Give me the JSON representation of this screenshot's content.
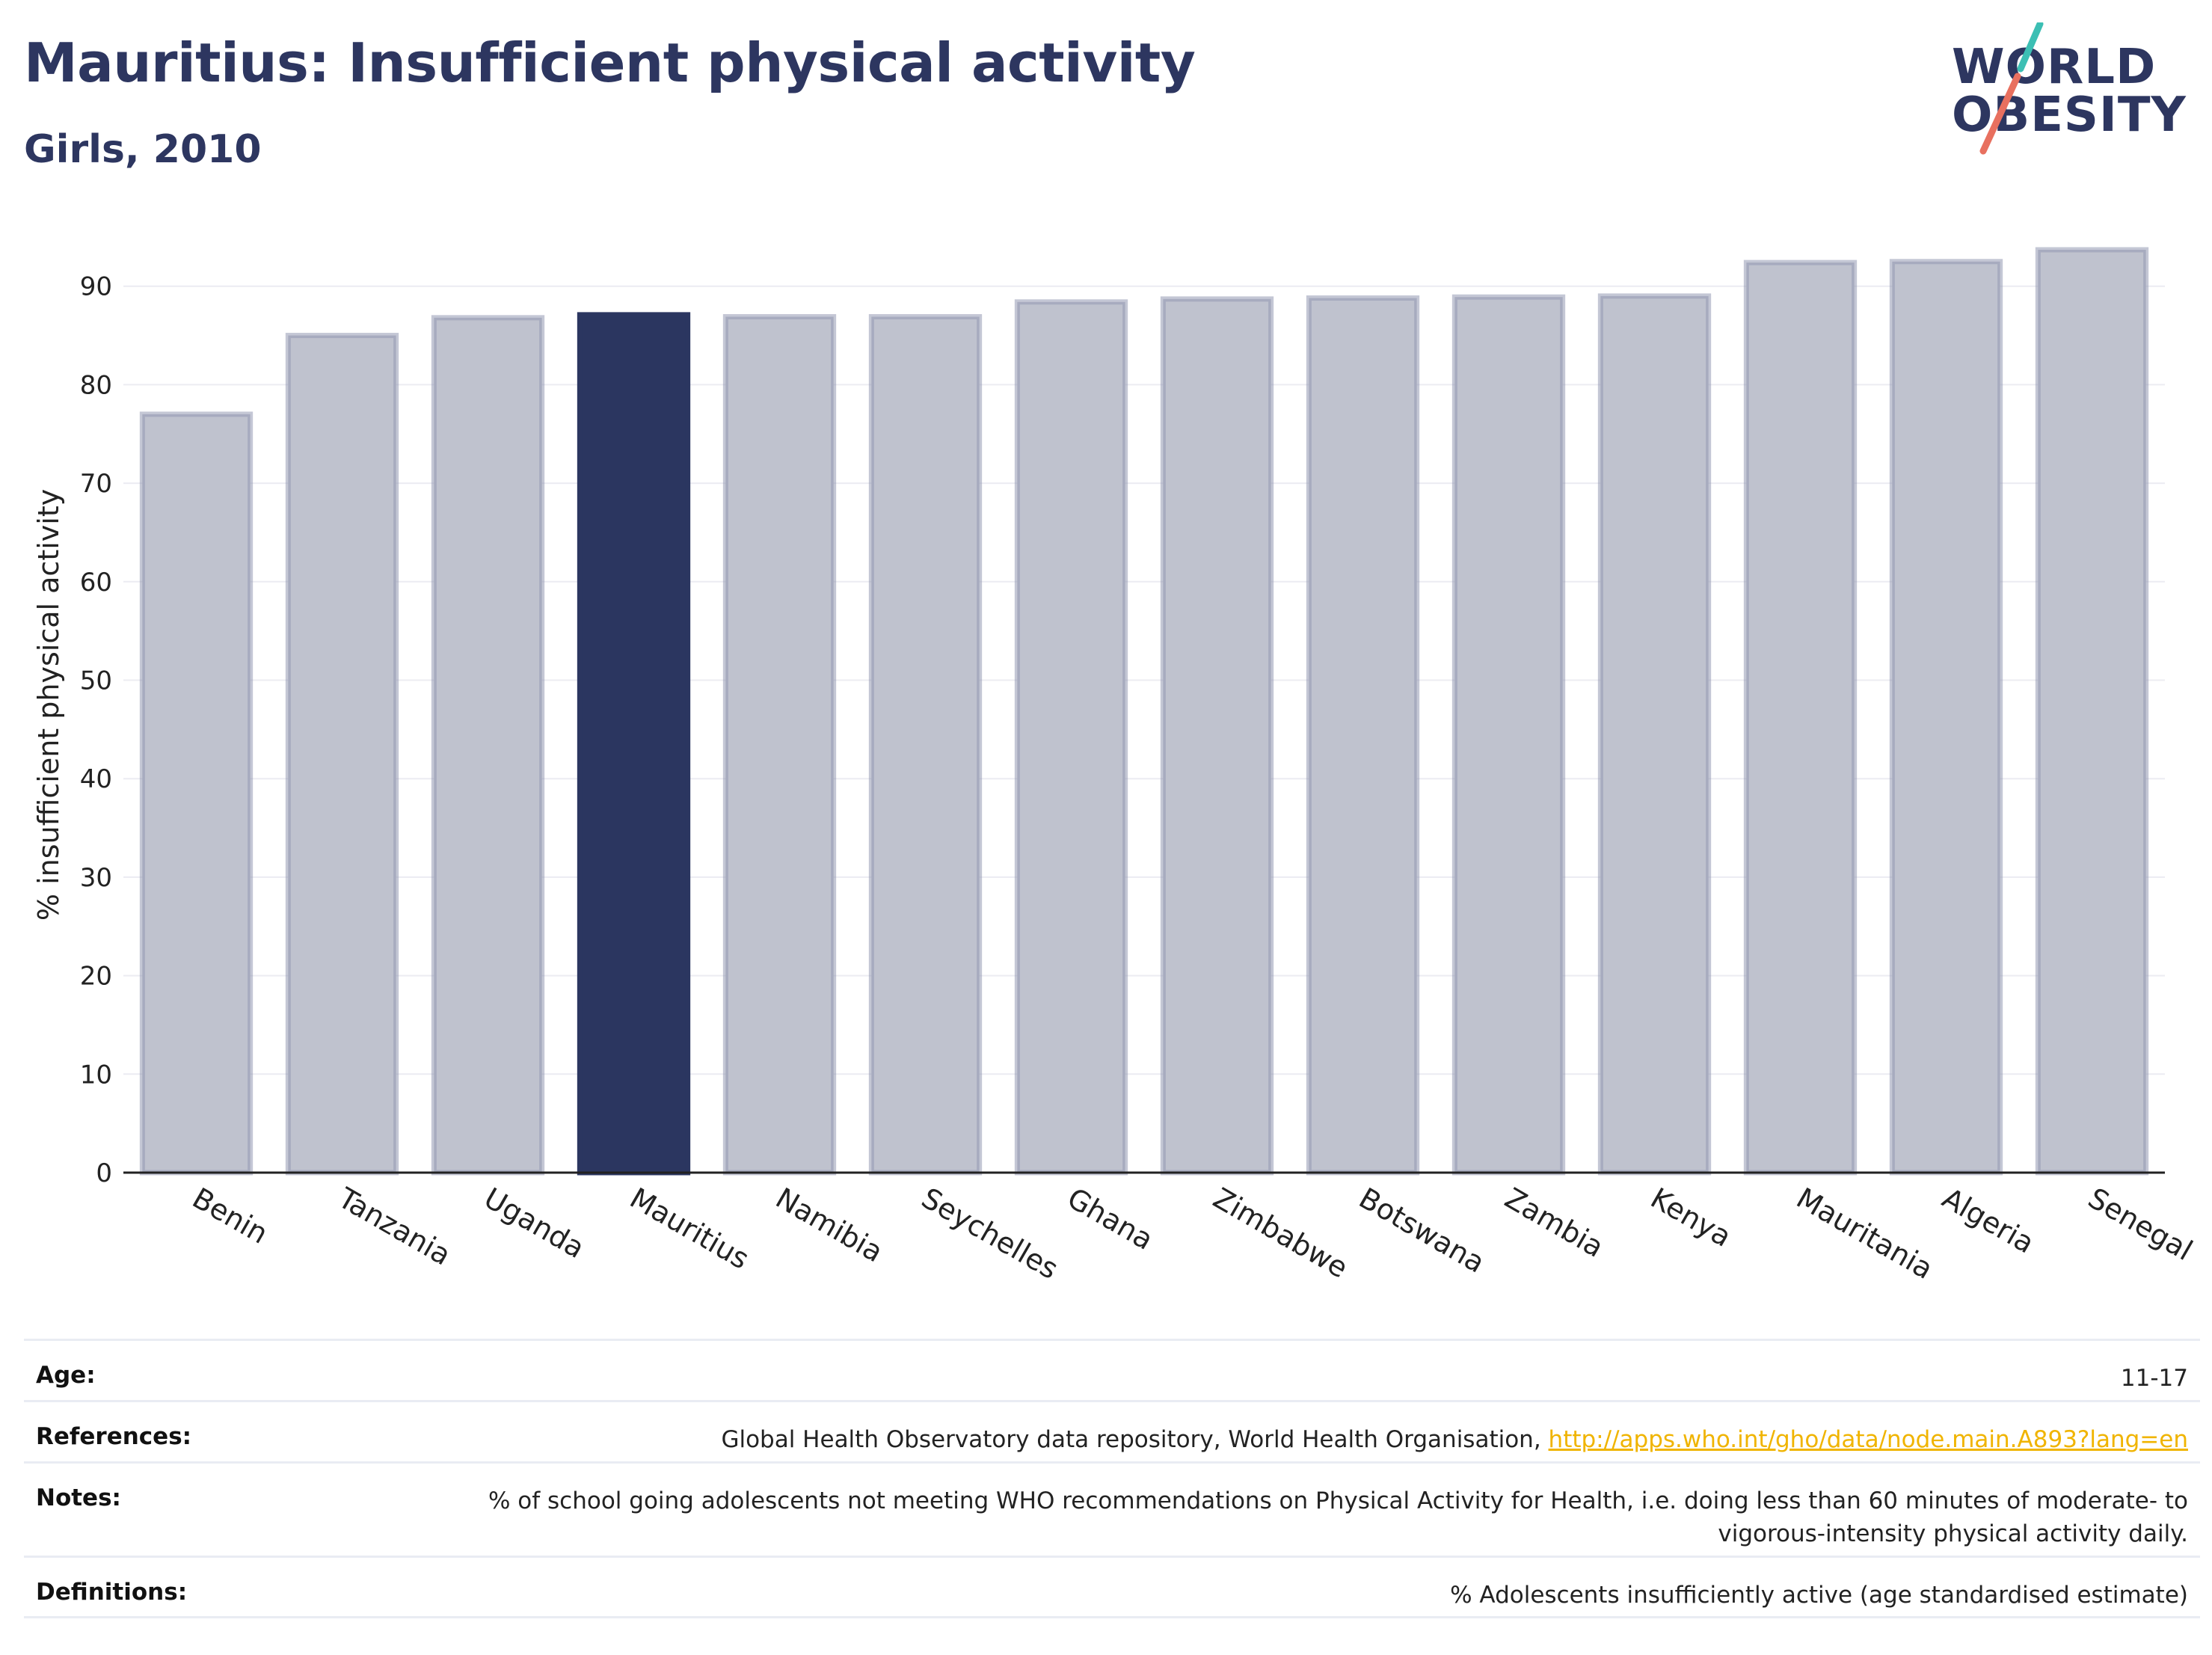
{
  "header": {
    "title": "Mauritius: Insufficient physical activity",
    "subtitle": "Girls, 2010"
  },
  "logo": {
    "line1": "WORLD",
    "line2": "OBESITY",
    "colors": {
      "text": "#2d3660",
      "slash_top": "#3cbfb4",
      "slash_bottom": "#e8705f"
    }
  },
  "chart_data": {
    "type": "bar",
    "ylabel": "% insufficient physical activity",
    "ylim": [
      0,
      95
    ],
    "yticks": [
      0,
      10,
      20,
      30,
      40,
      50,
      60,
      70,
      80,
      90
    ],
    "grid": true,
    "highlight": "Mauritius",
    "colors": {
      "bar": "#bfc2ce",
      "bar_edge": "#9499b2",
      "highlight": "#2b3660"
    },
    "categories": [
      "Benin",
      "Tanzania",
      "Uganda",
      "Mauritius",
      "Namibia",
      "Seychelles",
      "Ghana",
      "Zimbabwe",
      "Botswana",
      "Zambia",
      "Kenya",
      "Mauritania",
      "Algeria",
      "Senegal"
    ],
    "values": [
      77.0,
      85.0,
      86.8,
      87.1,
      86.9,
      86.9,
      88.4,
      88.7,
      88.8,
      88.9,
      89.0,
      92.4,
      92.5,
      93.7
    ]
  },
  "info": {
    "age": {
      "label": "Age:",
      "value": "11-17"
    },
    "references": {
      "label": "References:",
      "value": "Global Health Observatory data repository, World Health Organisation, ",
      "link": "http://apps.who.int/gho/data/node.main.A893?lang=en"
    },
    "notes": {
      "label": "Notes:",
      "value": "% of school going adolescents not meeting WHO recommendations on Physical Activity for Health, i.e. doing less than 60 minutes of moderate- to vigorous-intensity physical activity daily."
    },
    "definitions": {
      "label": "Definitions:",
      "value": "% Adolescents insufficiently active (age standardised estimate)"
    }
  }
}
